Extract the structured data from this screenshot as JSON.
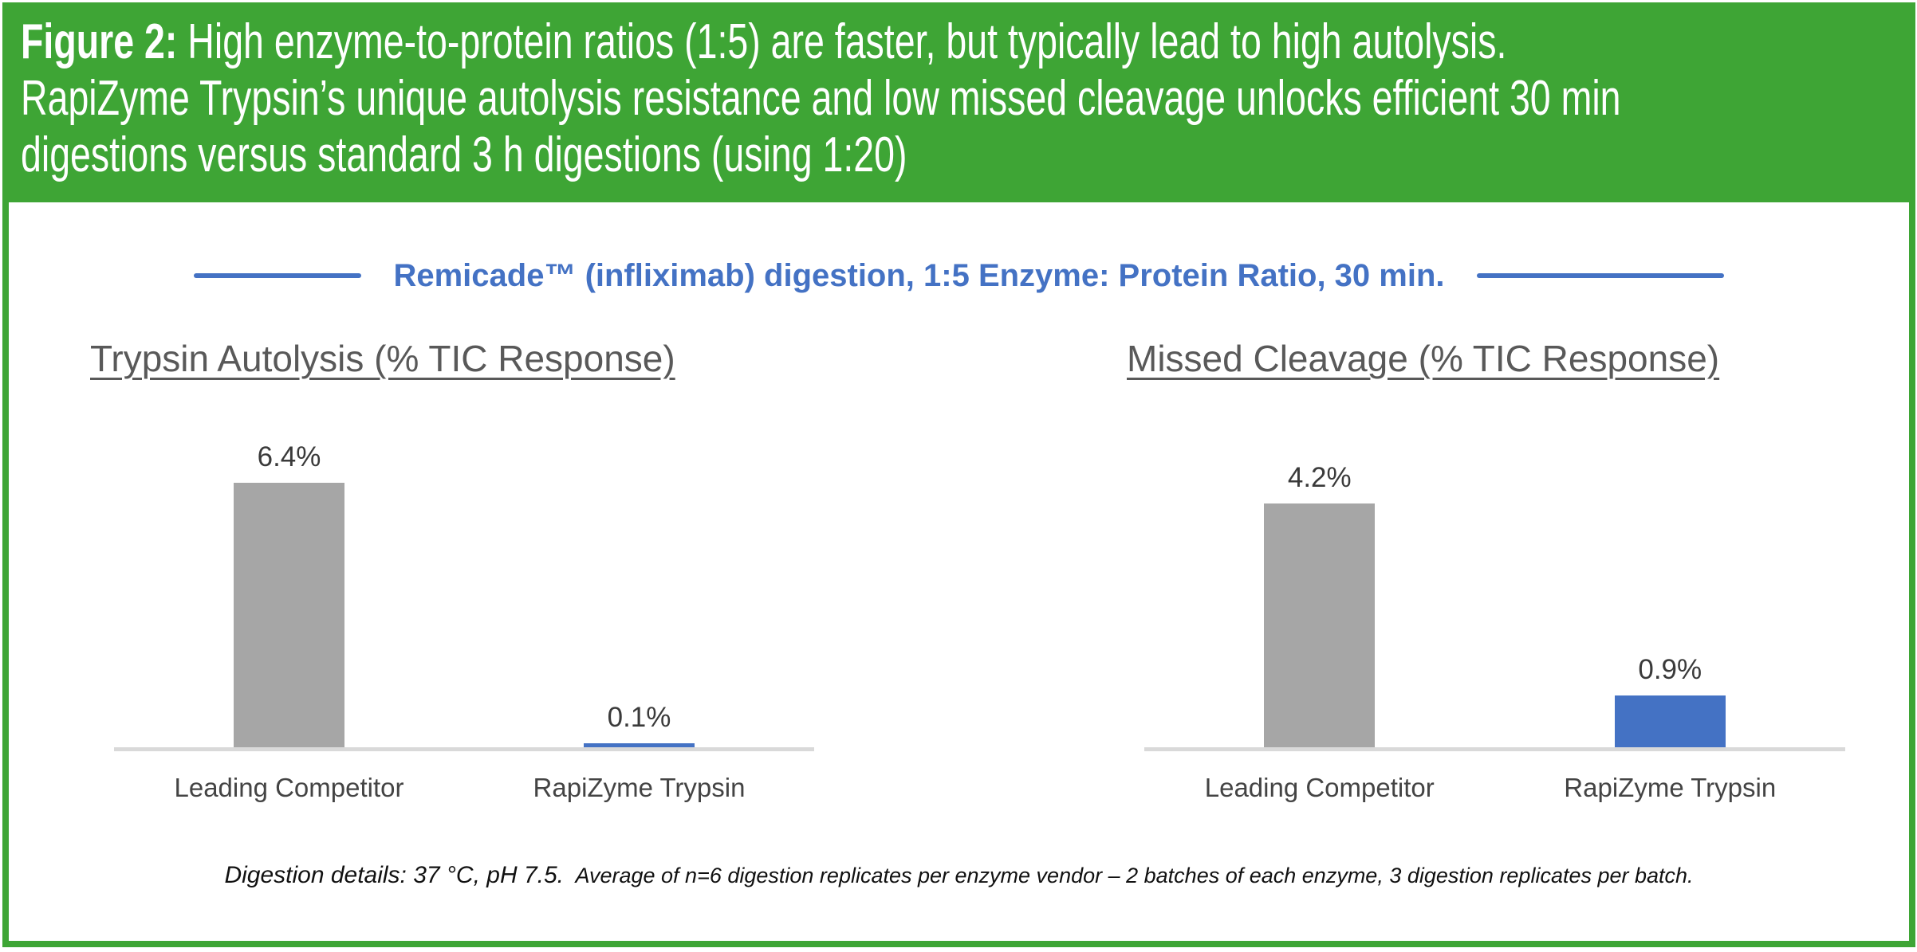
{
  "figure_header": {
    "figure_label": "Figure 2:",
    "line1_rest": " High enzyme-to-protein ratios (1:5) are faster, but typically lead to high autolysis.",
    "line2": "RapiZyme Trypsin’s unique autolysis resistance and low missed cleavage unlocks efficient 30 min",
    "line3": "digestions versus standard 3 h digestions (using 1:20)"
  },
  "main_title": "Remicade™ (infliximab) digestion, 1:5 Enzyme: Protein Ratio, 30 min.",
  "footer": {
    "details_prefix": "Digestion details: 37 °C, pH 7.5.",
    "details_rest": "Average of n=6 digestion replicates per enzyme vendor – 2 batches of each enzyme, 3 digestion replicates per batch."
  },
  "colors": {
    "green": "#3EA535",
    "blue": "#4472C4",
    "gray_bar": "#A6A6A6",
    "axis": "#D9D9D9",
    "title_gray": "#595959"
  },
  "chart_data": [
    {
      "type": "bar",
      "title": "Trypsin Autolysis (% TIC Response)",
      "categories": [
        "Leading Competitor",
        "RapiZyme Trypsin"
      ],
      "values": [
        6.4,
        0.1
      ],
      "value_labels": [
        "6.4%",
        "0.1%"
      ],
      "bar_colors": [
        "#A6A6A6",
        "#4472C4"
      ],
      "ylim": [
        0,
        6.6
      ],
      "grid": false,
      "legend": "none",
      "axis_line": "bottom-only"
    },
    {
      "type": "bar",
      "title": "Missed Cleavage (% TIC Response)",
      "categories": [
        "Leading Competitor",
        "RapiZyme Trypsin"
      ],
      "values": [
        4.2,
        0.9
      ],
      "value_labels": [
        "4.2%",
        "0.9%"
      ],
      "bar_colors": [
        "#A6A6A6",
        "#4472C4"
      ],
      "ylim": [
        0,
        4.7
      ],
      "grid": false,
      "legend": "none",
      "axis_line": "bottom-only"
    }
  ]
}
